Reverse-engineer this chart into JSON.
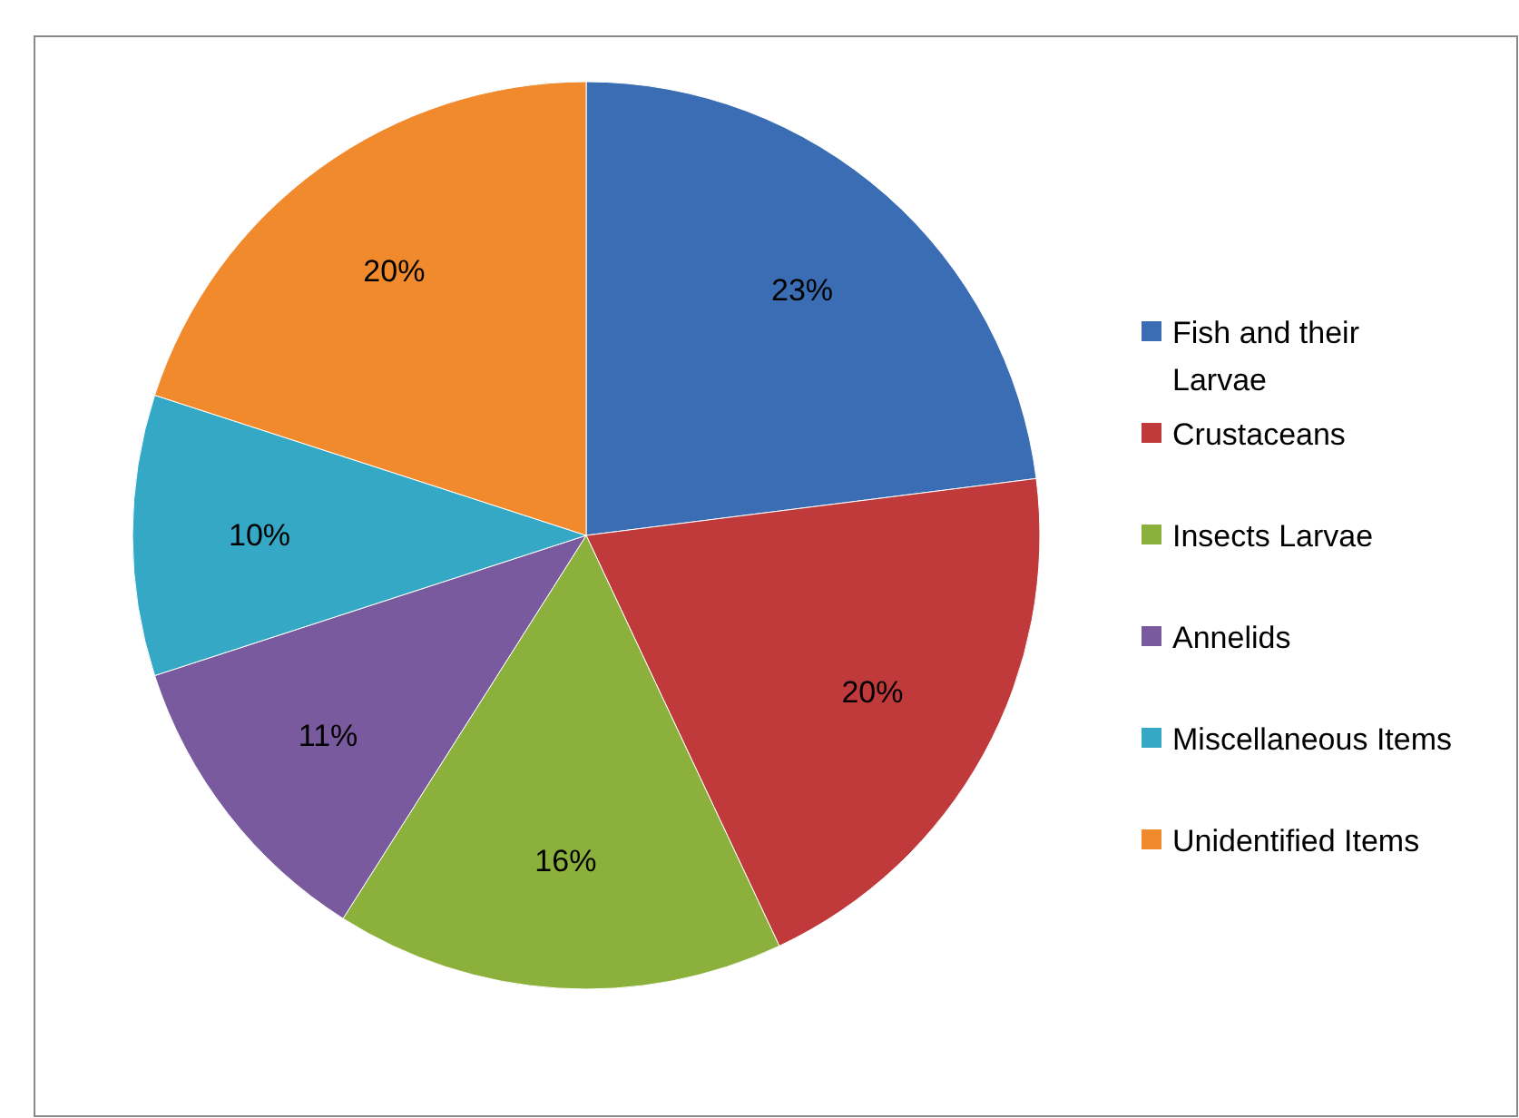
{
  "chart_data": {
    "type": "pie",
    "categories": [
      "Fish and their Larvae",
      "Crustaceans",
      "Insects Larvae",
      "Annelids",
      "Miscellaneous Items",
      "Unidentified Items"
    ],
    "values": [
      23,
      20,
      16,
      11,
      10,
      20
    ],
    "colors": [
      "#3a6db3",
      "#c0393b",
      "#8cb03c",
      "#7a5a9e",
      "#35a8c6",
      "#f08a2c"
    ],
    "value_labels": [
      "23%",
      "20%",
      "16%",
      "11%",
      "10%",
      "20%"
    ],
    "legend": "right"
  }
}
